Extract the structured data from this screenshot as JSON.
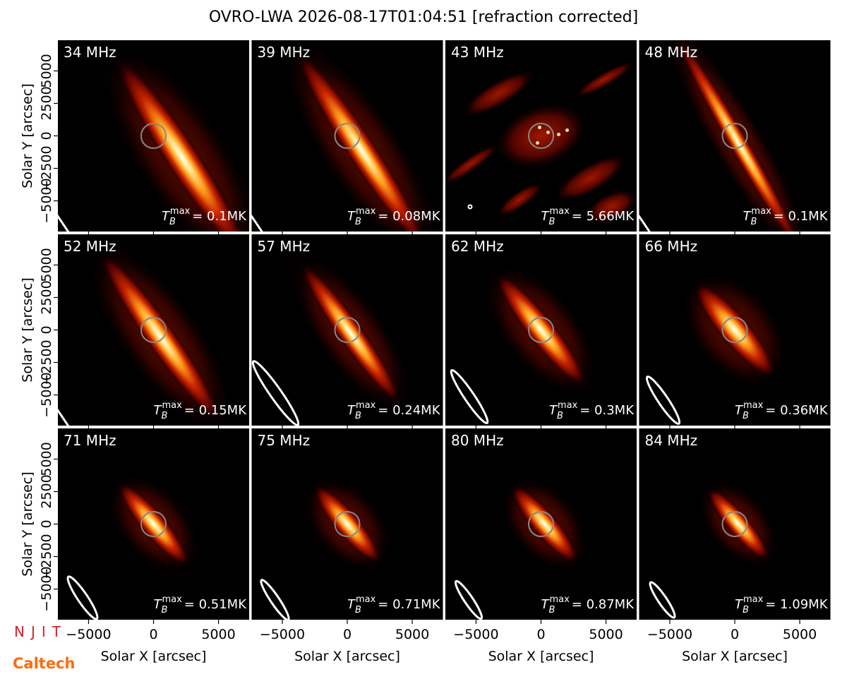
{
  "chart_data": {
    "type": "image-grid",
    "title": "OVRO-LWA 2026-08-17T01:04:51 [refraction corrected]",
    "xlabel": "Solar X [arcsec]",
    "ylabel": "Solar Y [arcsec]",
    "xlim": [
      -7360,
      7360
    ],
    "ylim": [
      -7360,
      7360
    ],
    "xticks": [
      {
        "value": -5000,
        "label": "−5000"
      },
      0,
      5000
    ],
    "yticks": [
      {
        "value": -5000,
        "label": "−5000"
      },
      {
        "value": -2500,
        "label": "−2500"
      },
      0,
      2500,
      5000
    ],
    "tb_symbol": "T",
    "tb_sub": "B",
    "tb_sup": "max",
    "logos": [
      "NJIT",
      "Caltech"
    ],
    "panels": [
      {
        "freq": "34 MHz",
        "tb": "= 0.1MK"
      },
      {
        "freq": "39 MHz",
        "tb": "= 0.08MK"
      },
      {
        "freq": "43 MHz",
        "tb": "= 5.66MK"
      },
      {
        "freq": "48 MHz",
        "tb": "= 0.1MK"
      },
      {
        "freq": "52 MHz",
        "tb": "= 0.15MK"
      },
      {
        "freq": "57 MHz",
        "tb": "= 0.24MK"
      },
      {
        "freq": "62 MHz",
        "tb": "= 0.3MK"
      },
      {
        "freq": "66 MHz",
        "tb": "= 0.36MK"
      },
      {
        "freq": "71 MHz",
        "tb": "= 0.51MK"
      },
      {
        "freq": "75 MHz",
        "tb": "= 0.71MK"
      },
      {
        "freq": "80 MHz",
        "tb": "= 0.87MK"
      },
      {
        "freq": "84 MHz",
        "tb": "= 1.09MK"
      }
    ]
  }
}
